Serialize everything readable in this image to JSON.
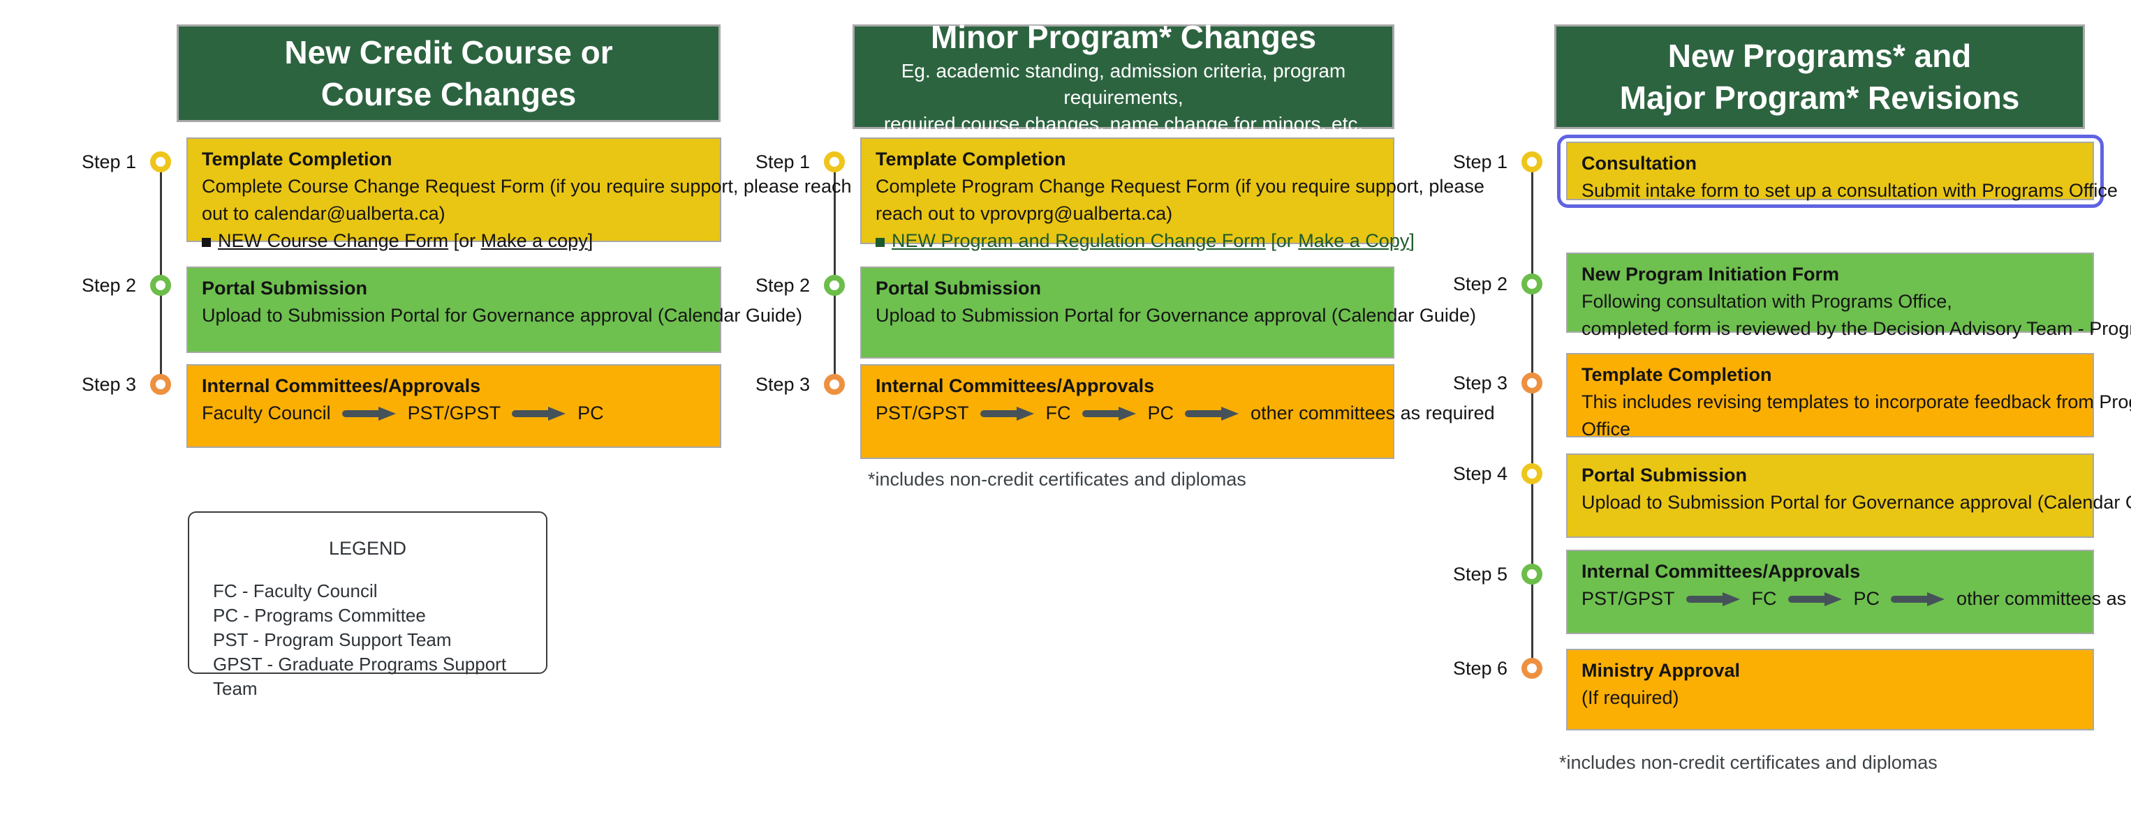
{
  "colors": {
    "header_bg": "#2d6440",
    "yellow": "#e9c514",
    "green": "#6ec04f",
    "orange": "#fcaf03",
    "ring_yellow": "#eec51c",
    "ring_green": "#6cbd4a",
    "ring_orange": "#ed9140",
    "highlight": "#6163e2",
    "arrow": "#46525a",
    "link_green": "#1c5a2c",
    "link_black": "#141414"
  },
  "columns": [
    {
      "id": "new-credit-course",
      "header": {
        "title_lines": [
          "New Credit Course or",
          "Course Changes"
        ],
        "subtitle_lines": []
      },
      "footnote": "",
      "steps": [
        {
          "label": "Step 1",
          "ring": "yellow",
          "bg": "yellow",
          "title": "Template Completion",
          "lines": [
            {
              "type": "text",
              "text": "Complete Course Change Request Form (if you require support, please reach"
            },
            {
              "type": "text",
              "text": "out to calendar@ualberta.ca)"
            },
            {
              "type": "links",
              "style": "black",
              "parts": [
                {
                  "text": "NEW Course Change Form",
                  "link": true
                },
                {
                  "text": " [or ",
                  "link": false
                },
                {
                  "text": "Make a copy",
                  "link": true
                },
                {
                  "text": "]",
                  "link": false
                }
              ]
            }
          ]
        },
        {
          "label": "Step 2",
          "ring": "green",
          "bg": "green",
          "title": "Portal Submission",
          "lines": [
            {
              "type": "text",
              "text": "Upload to Submission Portal for Governance approval (Calendar Guide)"
            }
          ]
        },
        {
          "label": "Step 3",
          "ring": "orange",
          "bg": "orange",
          "title": "Internal Committees/Approvals",
          "lines": [
            {
              "type": "flow",
              "items": [
                "Faculty Council",
                "PST/GPST",
                "PC"
              ]
            }
          ]
        }
      ]
    },
    {
      "id": "minor-program-changes",
      "header": {
        "title_lines": [
          "Minor Program* Changes"
        ],
        "subtitle_lines": [
          "Eg. academic standing, admission criteria, program requirements,",
          "required course changes, name change for minors, etc."
        ]
      },
      "footnote": "*includes non-credit certificates and diplomas",
      "steps": [
        {
          "label": "Step 1",
          "ring": "yellow",
          "bg": "yellow",
          "title": "Template Completion",
          "lines": [
            {
              "type": "text",
              "text": "Complete Program Change Request Form (if you require support, please"
            },
            {
              "type": "text",
              "text": "reach out to vprovprg@ualberta.ca)"
            },
            {
              "type": "links",
              "style": "green",
              "parts": [
                {
                  "text": "NEW Program and Regulation Change Form",
                  "link": true
                },
                {
                  "text": " [or ",
                  "link": false
                },
                {
                  "text": "Make a Copy",
                  "link": true
                },
                {
                  "text": "]",
                  "link": false
                }
              ]
            }
          ]
        },
        {
          "label": "Step 2",
          "ring": "green",
          "bg": "green",
          "title": "Portal Submission",
          "lines": [
            {
              "type": "text",
              "text": "Upload to Submission Portal for Governance approval (Calendar Guide)"
            }
          ]
        },
        {
          "label": "Step 3",
          "ring": "orange",
          "bg": "orange",
          "title": "Internal Committees/Approvals",
          "lines": [
            {
              "type": "flow",
              "items": [
                "PST/GPST",
                "FC",
                "PC",
                "other committees as required"
              ]
            }
          ]
        }
      ]
    },
    {
      "id": "new-programs-major-revisions",
      "header": {
        "title_lines": [
          "New Programs* and",
          "Major Program* Revisions"
        ],
        "subtitle_lines": []
      },
      "footnote": "*includes non-credit certificates and diplomas",
      "steps": [
        {
          "label": "Step 1",
          "ring": "yellow",
          "bg": "yellow",
          "highlight": true,
          "title": "Consultation",
          "lines": [
            {
              "type": "text",
              "text": "Submit intake form to set up a consultation with Programs Office"
            }
          ]
        },
        {
          "label": "Step 2",
          "ring": "green",
          "bg": "green",
          "title": "New Program Initiation Form",
          "lines": [
            {
              "type": "text",
              "text": "Following consultation with Programs Office,"
            },
            {
              "type": "text",
              "text": "completed form is reviewed by the Decision Advisory Team - Programs"
            }
          ]
        },
        {
          "label": "Step 3",
          "ring": "orange",
          "bg": "orange",
          "title": "Template Completion",
          "lines": [
            {
              "type": "text",
              "text": "This includes revising templates to incorporate feedback from Programs"
            },
            {
              "type": "text",
              "text": "Office"
            }
          ]
        },
        {
          "label": "Step 4",
          "ring": "yellow",
          "bg": "yellow",
          "title": "Portal Submission",
          "lines": [
            {
              "type": "text",
              "text": "Upload to Submission Portal for Governance approval (Calendar Guide)"
            }
          ]
        },
        {
          "label": "Step 5",
          "ring": "green",
          "bg": "green",
          "title": "Internal Committees/Approvals",
          "lines": [
            {
              "type": "flow",
              "items": [
                "PST/GPST",
                "FC",
                "PC",
                "other committees as required"
              ]
            }
          ]
        },
        {
          "label": "Step 6",
          "ring": "orange",
          "bg": "orange",
          "title": "Ministry Approval",
          "lines": [
            {
              "type": "text",
              "text": "(If required)"
            }
          ]
        }
      ]
    }
  ],
  "legend": {
    "title": "LEGEND",
    "items": [
      "FC - Faculty Council",
      "PC - Programs Committee",
      "PST - Program Support Team",
      "GPST - Graduate Programs Support Team"
    ]
  }
}
